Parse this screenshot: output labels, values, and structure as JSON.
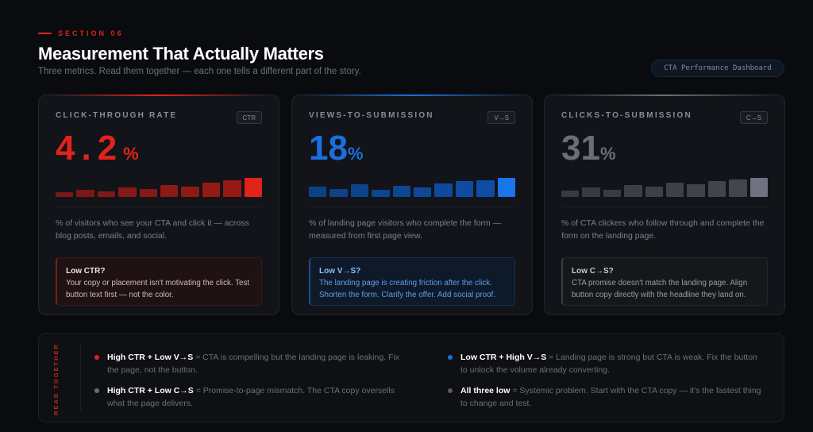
{
  "header": {
    "eyebrow": "SECTION 06",
    "title": "Measurement That Actually Matters",
    "subtitle": "Three metrics. Read them together — each one tells a different part of the story.",
    "badge": "CTA Performance Dashboard"
  },
  "cards": [
    {
      "label": "CLICK-THROUGH RATE",
      "tag": "CTR",
      "value": "4.2",
      "unit": "%",
      "color": "#e0231b",
      "bars": [
        0.25,
        0.39,
        0.31,
        0.5,
        0.43,
        0.63,
        0.56,
        0.76,
        0.89,
        1
      ],
      "description": "% of visitors who see your CTA and click it — across blog posts, emails, and social.",
      "note_title": "Low CTR?",
      "note_text": "Your copy or placement isn't motivating the click. Test button text first — not the color."
    },
    {
      "label": "VIEWS-TO-SUBMISSION",
      "tag": "V→S",
      "value": "18",
      "unit": "%",
      "color": "#1a6fe0",
      "bars": [
        0.54,
        0.43,
        0.67,
        0.38,
        0.58,
        0.5,
        0.72,
        0.83,
        0.89,
        1
      ],
      "description": "% of landing page visitors who complete the form — measured from first page view.",
      "note_title": "Low V→S?",
      "note_text": "The landing page is creating friction after the click. Shorten the form. Clarify the offer. Add social proof."
    },
    {
      "label": "CLICKS-TO-SUBMISSION",
      "tag": "C→S",
      "value": "31",
      "unit": "%",
      "color": "#6b6e7a",
      "bars": [
        0.33,
        0.5,
        0.39,
        0.64,
        0.56,
        0.75,
        0.68,
        0.83,
        0.92,
        1
      ],
      "description": "% of CTA clickers who follow through and complete the form on the landing page.",
      "note_title": "Low C→S?",
      "note_text": "CTA promise doesn't match the landing page. Align button copy directly with the headline they land on."
    }
  ],
  "read_together": {
    "label": "READ TOGETHER",
    "items": [
      {
        "bold": "High CTR + Low V→S",
        "text": " = CTA is compelling but the landing page is leaking. Fix the page, not the button.",
        "color": "#e0231b"
      },
      {
        "bold": "Low CTR + High V→S",
        "text": " = Landing page is strong but CTA is weak. Fix the button to unlock the volume already converting.",
        "color": "#1a6fe0"
      },
      {
        "bold": "High CTR + Low C→S",
        "text": " = Promise-to-page mismatch. The CTA copy oversells what the page delivers.",
        "color": "#6b6e7a"
      },
      {
        "bold": "All three low",
        "text": " = Systemic problem. Start with the CTA copy — it's the fastest thing to change and test.",
        "color": "#5a5c63"
      }
    ]
  }
}
